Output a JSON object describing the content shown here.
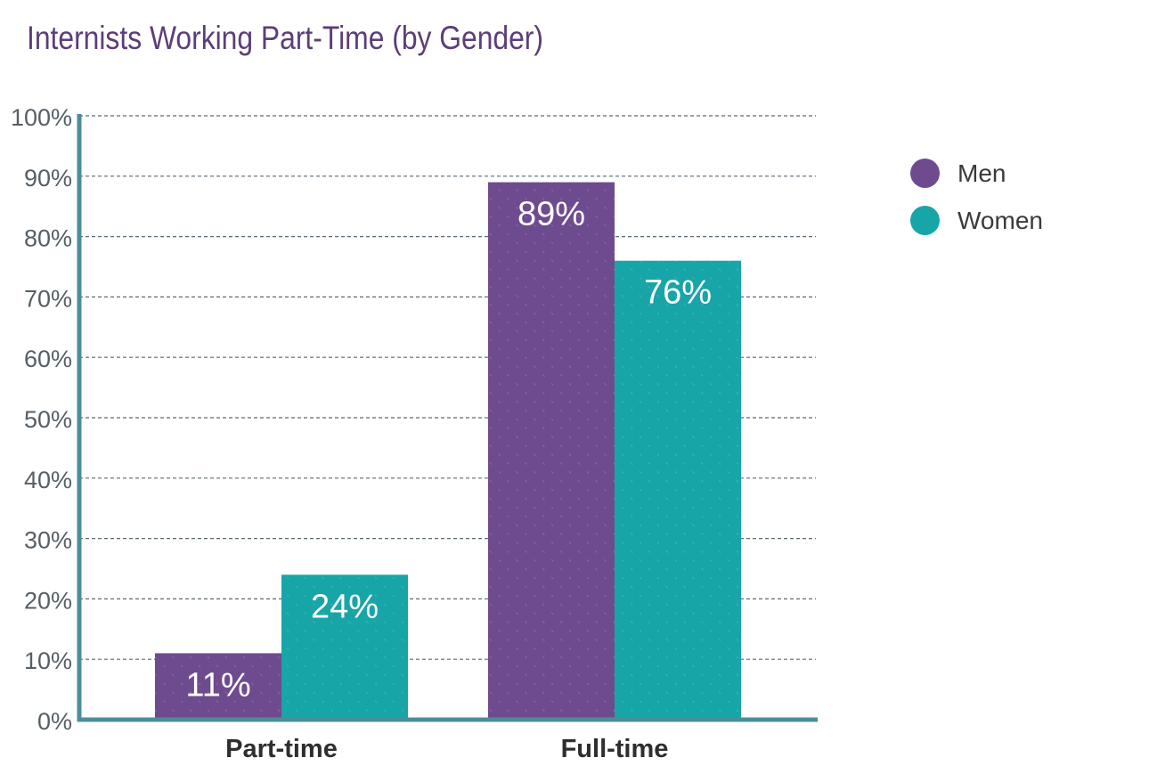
{
  "chart_data": {
    "type": "bar",
    "title": "Internists Working Part-Time (by Gender)",
    "categories": [
      "Part-time",
      "Full-time"
    ],
    "series": [
      {
        "name": "Men",
        "values": [
          11,
          89
        ],
        "color": "#6e4b8f"
      },
      {
        "name": "Women",
        "values": [
          24,
          76
        ],
        "color": "#18a5a8"
      }
    ],
    "data_labels": [
      [
        "11%",
        "89%"
      ],
      [
        "24%",
        "76%"
      ]
    ],
    "ylim": [
      0,
      100
    ],
    "yticks": [
      "0%",
      "10%",
      "20%",
      "30%",
      "40%",
      "50%",
      "60%",
      "70%",
      "80%",
      "90%",
      "100%"
    ],
    "xlabel": "",
    "ylabel": "",
    "grid": true,
    "legend_position": "right"
  },
  "colors": {
    "title": "#5c3e78",
    "axis": "#4d8d99",
    "tick_text": "#555f66",
    "grid": "#5a6a72"
  }
}
